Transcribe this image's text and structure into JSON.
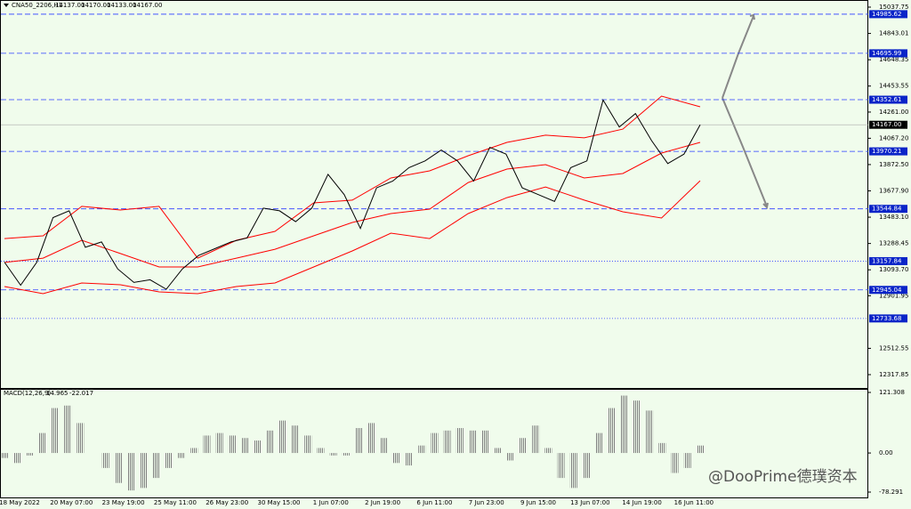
{
  "chart_data": {
    "type": "line",
    "symbol": "CNA50_2206,H1",
    "ohlc": [
      {
        "value": 14137,
        "label": "14137.00"
      },
      {
        "value": 14170,
        "label": "14170.00"
      },
      {
        "value": 14133,
        "label": "14133.00"
      },
      {
        "value": 14167,
        "label": "14167.00"
      }
    ],
    "ylim": [
      12317.85,
      15037.75
    ],
    "yticks": [
      15037.75,
      14843.01,
      14648.35,
      14453.55,
      {
        "value": 14261,
        "label": "14261.00"
      },
      {
        "value": 14067.2,
        "label": "14067.20"
      },
      {
        "value": 13872.5,
        "label": "13872.50"
      },
      {
        "value": 13677.9,
        "label": "13677.90"
      },
      {
        "value": 13483.1,
        "label": "13483.10"
      },
      13288.45,
      {
        "value": 13093.7,
        "label": "13093.70"
      },
      12901.95,
      12512.55,
      12317.85
    ],
    "current_price": {
      "value": 14167,
      "label": "14167.00"
    },
    "levels": [
      {
        "value": 14985.62,
        "style": "dashed"
      },
      {
        "value": 14695.99,
        "style": "dashed"
      },
      {
        "value": 14352.61,
        "style": "dashed"
      },
      {
        "value": 13970.21,
        "style": "dashed"
      },
      {
        "value": 13544.84,
        "style": "dashed"
      },
      {
        "value": 13157.84,
        "style": "dotted"
      },
      {
        "value": 12945.04,
        "style": "dashed"
      },
      {
        "value": 12733.68,
        "style": "dotted"
      }
    ],
    "close": {
      "color": "#000000",
      "values": [
        13150,
        12980,
        13150,
        13480,
        13530,
        13260,
        13300,
        13100,
        13000,
        13020,
        12950,
        13100,
        13200,
        13250,
        13300,
        13330,
        13550,
        13530,
        13450,
        13550,
        13800,
        13650,
        13400,
        13700,
        13750,
        13850,
        13900,
        13980,
        13900,
        13750,
        14000,
        13950,
        13700,
        13650,
        13600,
        13850,
        13900,
        14350,
        14150,
        14250,
        14050,
        13880,
        13950,
        14167
      ]
    },
    "bands": {
      "color": "#ff0000",
      "upper": [
        13325,
        13345,
        13563,
        13536,
        13563,
        13180,
        13312,
        13378,
        13589,
        13609,
        13773,
        13826,
        13938,
        14037,
        14090,
        14070,
        14135,
        14379,
        14300
      ],
      "middle": [
        13148,
        13180,
        13312,
        13214,
        13115,
        13115,
        13180,
        13246,
        13345,
        13444,
        13510,
        13543,
        13740,
        13839,
        13872,
        13773,
        13806,
        13958,
        14037
      ],
      "lower": [
        12970,
        12917,
        12996,
        12983,
        12930,
        12917,
        12970,
        12996,
        13115,
        13233,
        13365,
        13325,
        13510,
        13628,
        13707,
        13609,
        13523,
        13477,
        13753
      ]
    },
    "macd": {
      "name": "MACD(12,26,9)",
      "macd_value": 14.965,
      "signal_value": -22.017,
      "color": "#808080",
      "ylim": [
        -78.291,
        121.308
      ],
      "yticks": [
        121.308,
        {
          "value": 0,
          "label": "0.00"
        },
        -78.291
      ],
      "values": [
        -10,
        -20,
        -5,
        40,
        90,
        95,
        60,
        0,
        -30,
        -60,
        -75,
        -70,
        -50,
        -30,
        -10,
        10,
        35,
        40,
        35,
        30,
        25,
        45,
        65,
        55,
        35,
        10,
        -5,
        -5,
        50,
        60,
        30,
        -20,
        -25,
        15,
        40,
        45,
        50,
        45,
        45,
        10,
        -15,
        30,
        55,
        10,
        -50,
        -70,
        -50,
        40,
        90,
        115,
        105,
        85,
        20,
        -40,
        -30,
        14.965
      ]
    },
    "categories": [
      "18 May 2022",
      "20 May 07:00",
      "23 May 19:00",
      "25 May 11:00",
      "26 May 23:00",
      "30 May 15:00",
      "1 Jun 07:00",
      "2 Jun 19:00",
      "6 Jun 11:00",
      "7 Jun 23:00",
      "9 Jun 15:00",
      "13 Jun 07:00",
      "14 Jun 19:00",
      "16 Jun 11:00"
    ],
    "watermark": "@DooPrime德璞资本"
  }
}
